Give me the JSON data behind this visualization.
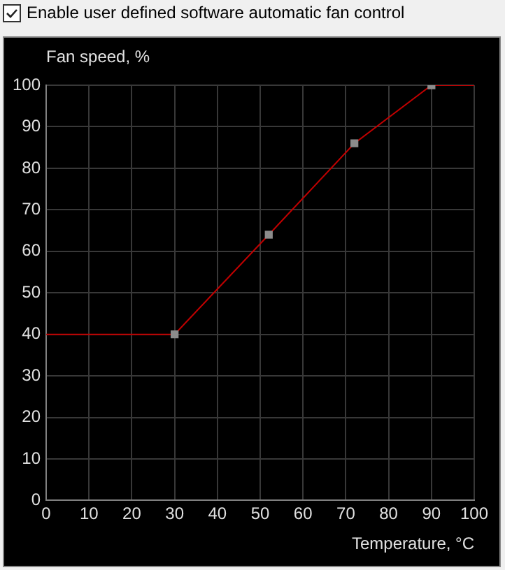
{
  "chart_data": {
    "type": "line",
    "xlabel": "Temperature, °C",
    "ylabel": "Fan speed, %",
    "annotations": [
      "Enable user defined software automatic fan control"
    ],
    "series": [
      {
        "color": "#c00000",
        "marker": "none",
        "x": [
          0,
          30,
          52,
          72,
          90,
          100
        ],
        "values": [
          40,
          40,
          64,
          86,
          100,
          100
        ]
      },
      {
        "type": "scatter",
        "color": "#8c8c8c",
        "marker": "square",
        "x": [
          30,
          52,
          72,
          90
        ],
        "values": [
          40,
          64,
          86,
          100
        ]
      }
    ],
    "xlim": [
      0,
      100
    ],
    "xticks": [
      0,
      10,
      20,
      30,
      40,
      50,
      60,
      70,
      80,
      90,
      100
    ],
    "ylim": [
      0,
      100
    ],
    "yticks": [
      0,
      10,
      20,
      30,
      40,
      50,
      60,
      70,
      80,
      90,
      100
    ],
    "grid": true,
    "legend": false
  }
}
